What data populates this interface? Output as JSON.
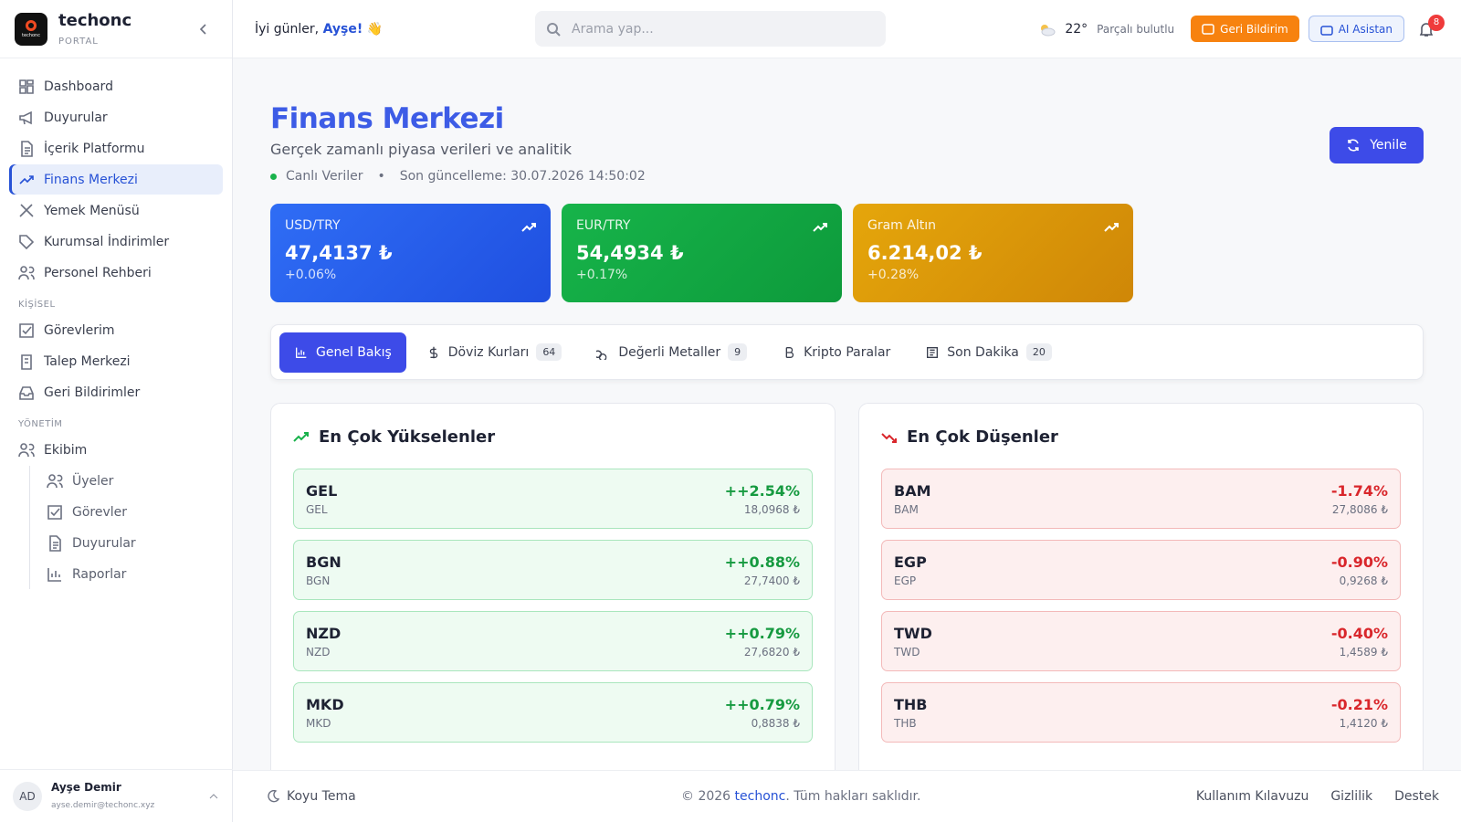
{
  "brand": {
    "name": "techonc",
    "sub": "PORTAL",
    "logo_text": "techonc"
  },
  "nav": {
    "main": [
      "Dashboard",
      "Duyurular",
      "İçerik Platformu",
      "Finans Merkezi",
      "Yemek Menüsü",
      "Kurumsal İndirimler",
      "Personel Rehberi"
    ],
    "personal_title": "KİŞİSEL",
    "personal": [
      "Görevlerim",
      "Talep Merkezi",
      "Geri Bildirimler"
    ],
    "admin_title": "YÖNETİM",
    "admin": [
      "Ekibim"
    ],
    "admin_sub": [
      "Üyeler",
      "Görevler",
      "Duyurular",
      "Raporlar"
    ]
  },
  "user": {
    "initials": "AD",
    "name": "Ayşe Demir",
    "email": "ayse.demir@techonc.xyz"
  },
  "topbar": {
    "greeting": "İyi günler,",
    "user": "Ayşe!",
    "emoji": "👋",
    "search_placeholder": "Arama yap...",
    "temp": "22°",
    "weather": "Parçalı bulutlu",
    "feedback": "Geri Bildirim",
    "ai": "AI Asistan",
    "notifications": 8
  },
  "header": {
    "title": "Finans Merkezi",
    "subtitle": "Gerçek zamanlı piyasa verileri ve analitik",
    "live": "Canlı Veriler",
    "updated": "Son güncelleme: 30.07.2026 14:50:02",
    "refresh": "Yenile"
  },
  "cards": [
    {
      "label": "USD/TRY",
      "value": "47,4137 ₺",
      "change": "+0.06%"
    },
    {
      "label": "EUR/TRY",
      "value": "54,4934 ₺",
      "change": "+0.17%"
    },
    {
      "label": "Gram Altın",
      "value": "6.214,02 ₺",
      "change": "+0.28%"
    }
  ],
  "tabs": [
    {
      "label": "Genel Bakış"
    },
    {
      "label": "Döviz Kurları",
      "count": 64
    },
    {
      "label": "Değerli Metaller",
      "count": 9
    },
    {
      "label": "Kripto Paralar"
    },
    {
      "label": "Son Dakika",
      "count": 20
    }
  ],
  "gainers": {
    "title": "En Çok Yükselenler",
    "rows": [
      {
        "code": "GEL",
        "name": "GEL",
        "change": "++2.54%",
        "rate": "18,0968 ₺"
      },
      {
        "code": "BGN",
        "name": "BGN",
        "change": "++0.88%",
        "rate": "27,7400 ₺"
      },
      {
        "code": "NZD",
        "name": "NZD",
        "change": "++0.79%",
        "rate": "27,6820 ₺"
      },
      {
        "code": "MKD",
        "name": "MKD",
        "change": "++0.79%",
        "rate": "0,8838 ₺"
      }
    ]
  },
  "losers": {
    "title": "En Çok Düşenler",
    "rows": [
      {
        "code": "BAM",
        "name": "BAM",
        "change": "-1.74%",
        "rate": "27,8086 ₺"
      },
      {
        "code": "EGP",
        "name": "EGP",
        "change": "-0.90%",
        "rate": "0,9268 ₺"
      },
      {
        "code": "TWD",
        "name": "TWD",
        "change": "-0.40%",
        "rate": "1,4589 ₺"
      },
      {
        "code": "THB",
        "name": "THB",
        "change": "-0.21%",
        "rate": "1,4120 ₺"
      }
    ]
  },
  "footer": {
    "theme": "Koyu Tema",
    "copyright_prefix": "© 2026",
    "brand": "techonc",
    "copyright_suffix": ". Tüm hakları saklıdır.",
    "links": [
      "Kullanım Kılavuzu",
      "Gizlilik",
      "Destek"
    ]
  }
}
